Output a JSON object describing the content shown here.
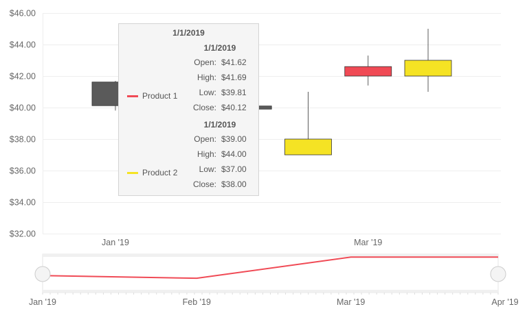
{
  "chart_data": {
    "type": "candlestick",
    "y_axis": {
      "min": 32,
      "max": 46,
      "step": 2,
      "tick_labels": [
        "$32.00",
        "$34.00",
        "$36.00",
        "$38.00",
        "$40.00",
        "$42.00",
        "$44.00",
        "$46.00"
      ]
    },
    "x_axis": {
      "tick_labels": [
        "Jan '19",
        "Mar '19"
      ]
    },
    "series": [
      {
        "name": "Product 1",
        "color": "#f04a55",
        "up_color": "#5a5a5a",
        "points": [
          {
            "date": "2019-01-01",
            "open": 41.62,
            "high": 41.69,
            "low": 39.81,
            "close": 40.12
          },
          {
            "date": "2019-02-01",
            "open": 40.1,
            "high": 40.1,
            "low": 39.9,
            "close": 39.9
          },
          {
            "date": "2019-03-01",
            "open": 42.0,
            "high": 43.3,
            "low": 41.4,
            "close": 42.6
          }
        ]
      },
      {
        "name": "Product 2",
        "color": "#f5e324",
        "points": [
          {
            "date": "2019-02-15",
            "open": 38.0,
            "high": 41.0,
            "low": 37.0,
            "close": 37.0
          },
          {
            "date": "2019-03-15",
            "open": 43.0,
            "high": 45.0,
            "low": 41.0,
            "close": 42.0
          }
        ]
      }
    ],
    "navigator": {
      "tick_labels": [
        "Jan '19",
        "Feb '19",
        "Mar '19",
        "Apr '19"
      ],
      "color": "#f04a55",
      "values": [
        40.1,
        39.8,
        42.2,
        42.2
      ]
    },
    "tooltip": {
      "title": "1/1/2019",
      "entries": [
        {
          "series": "Product 1",
          "date": "1/1/2019",
          "rows": [
            {
              "label": "Open:",
              "value": "$41.62"
            },
            {
              "label": "High:",
              "value": "$41.69"
            },
            {
              "label": "Low:",
              "value": "$39.81"
            },
            {
              "label": "Close:",
              "value": "$40.12"
            }
          ]
        },
        {
          "series": "Product 2",
          "date": "1/1/2019",
          "rows": [
            {
              "label": "Open:",
              "value": "$39.00"
            },
            {
              "label": "High:",
              "value": "$44.00"
            },
            {
              "label": "Low:",
              "value": "$37.00"
            },
            {
              "label": "Close:",
              "value": "$38.00"
            }
          ]
        }
      ]
    }
  }
}
